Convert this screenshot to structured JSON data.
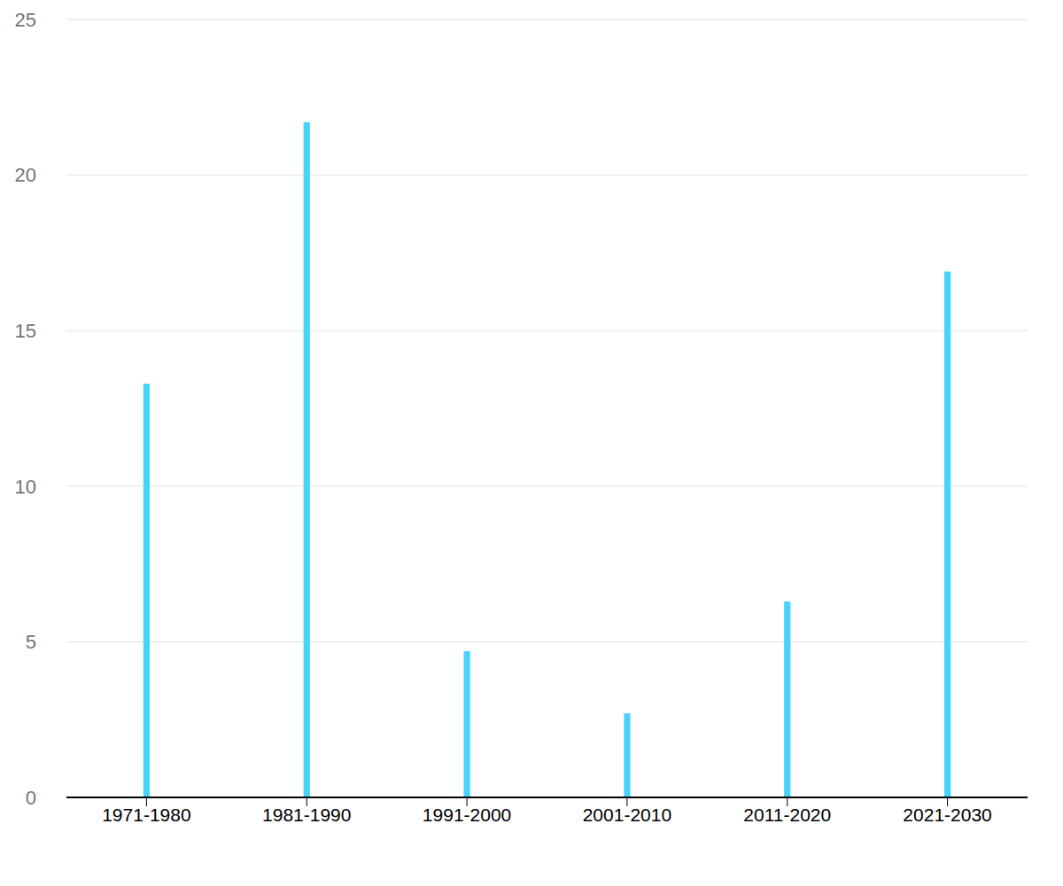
{
  "chart_data": {
    "type": "bar",
    "categories": [
      "1971-1980",
      "1981-1990",
      "1991-2000",
      "2001-2010",
      "2011-2020",
      "2021-2030"
    ],
    "values": [
      13.3,
      21.7,
      4.7,
      2.7,
      6.3,
      16.9
    ],
    "color": "#48d3ff",
    "ylim": [
      0,
      25
    ],
    "yticks": [
      0,
      5,
      10,
      15,
      20,
      25
    ],
    "grid": true
  }
}
